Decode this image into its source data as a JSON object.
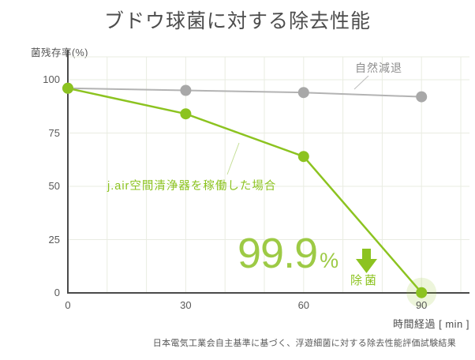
{
  "title": "ブドウ球菌に対する除去性能",
  "y_axis_title": "菌残存率(%)",
  "x_axis_title": "時間経過 [ min ]",
  "footnote": "日本電気工業会自主基準に基づく、浮遊細菌に対する除去性能評価試験結果",
  "labels": {
    "natural_decay": "自然減退",
    "device_case": "j.air空間清浄器を稼働した場合",
    "highlight_value": "99.9",
    "highlight_unit": "%",
    "highlight_caption": "除菌"
  },
  "colors": {
    "green": "#8cc320",
    "green_text": "#9dca45",
    "green_leader": "#c3de93",
    "gray_line": "#b3b3b3",
    "gray_point": "#a8a8a8",
    "gray_leader": "#bcbcbc",
    "grid": "#e9ece2",
    "axis": "#4a4a4a",
    "halo": "rgba(140,195,32,0.16)"
  },
  "chart_data": {
    "type": "line",
    "x": [
      0,
      30,
      60,
      90
    ],
    "x_ticks": [
      0,
      30,
      60,
      90
    ],
    "xlabel": "時間経過 [ min ]",
    "ylabel": "菌残存率(%)",
    "ylim": [
      0,
      100
    ],
    "xlim_minutes": [
      0,
      102
    ],
    "y_ticks": [
      0,
      25,
      50,
      75,
      100
    ],
    "grid": "on",
    "series": [
      {
        "name": "自然減退",
        "color": "#b3b3b3",
        "values": [
          96,
          95,
          94,
          92
        ]
      },
      {
        "name": "j.air空間清浄器を稼働した場合",
        "color": "#8cc320",
        "values": [
          96,
          84,
          64,
          0.1
        ]
      }
    ],
    "annotation": "99.9% 除菌 (90分で菌残存率0.1%)"
  }
}
